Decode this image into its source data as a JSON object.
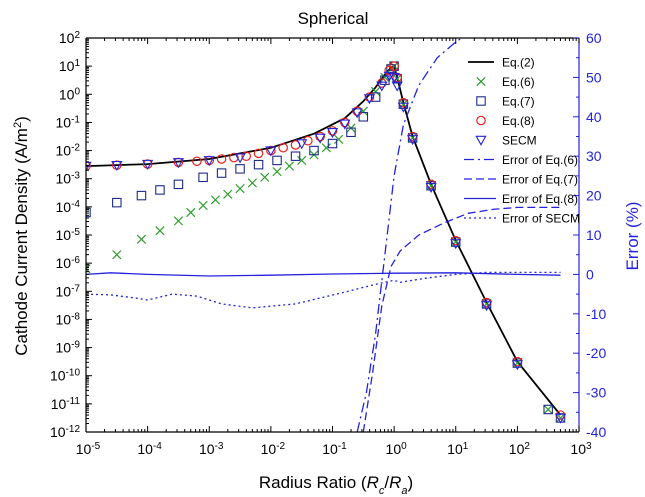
{
  "chart_data": {
    "type": "scatter",
    "title": "Spherical",
    "xlabel": "Radius Ratio (Rc/Ra)",
    "xlabel_parts": {
      "pre": "Radius Ratio (",
      "r1": "R",
      "s1": "c",
      "slash": "/",
      "r2": "R",
      "s2": "a",
      "post": ")"
    },
    "ylabel": "Cathode Current Density (A/m2)",
    "ylabel_parts": {
      "pre": "Cathode Current Density (A/m",
      "sup": "2",
      "post": ")"
    },
    "y2label": "Error (%)",
    "x_scale": "log",
    "y_scale": "log",
    "xlim_exp": [
      -5,
      3
    ],
    "ylim_exp": [
      -12,
      2
    ],
    "y2lim": [
      -40,
      60
    ],
    "x_ticks": [
      {
        "b": "10",
        "e": "-5"
      },
      {
        "b": "10",
        "e": "-4"
      },
      {
        "b": "10",
        "e": "-3"
      },
      {
        "b": "10",
        "e": "-2"
      },
      {
        "b": "10",
        "e": "-1"
      },
      {
        "b": "10",
        "e": "0"
      },
      {
        "b": "10",
        "e": "1"
      },
      {
        "b": "10",
        "e": "2"
      },
      {
        "b": "10",
        "e": "3"
      }
    ],
    "y_ticks": [
      {
        "b": "10",
        "e": "-12"
      },
      {
        "b": "10",
        "e": "-11"
      },
      {
        "b": "10",
        "e": "-10"
      },
      {
        "b": "10",
        "e": "-9"
      },
      {
        "b": "10",
        "e": "-8"
      },
      {
        "b": "10",
        "e": "-7"
      },
      {
        "b": "10",
        "e": "-6"
      },
      {
        "b": "10",
        "e": "-5"
      },
      {
        "b": "10",
        "e": "-4"
      },
      {
        "b": "10",
        "e": "-3"
      },
      {
        "b": "10",
        "e": "-2"
      },
      {
        "b": "10",
        "e": "-1"
      },
      {
        "b": "10",
        "e": "0"
      },
      {
        "b": "10",
        "e": "1"
      },
      {
        "b": "10",
        "e": "2"
      }
    ],
    "y2_ticks": [
      "-40",
      "-30",
      "-20",
      "-10",
      "0",
      "10",
      "20",
      "30",
      "40",
      "50",
      "60"
    ],
    "legend_position": "top-right",
    "colors": {
      "axis": "#000000",
      "right_axis": "#2323dc",
      "eq2": "#000000",
      "eq6": "#2e9c2e",
      "eq7": "#1f2a8c",
      "eq8": "#e8201e",
      "secm": "#2323dc",
      "error": "#2323dc"
    },
    "series": [
      {
        "name": "Eq.(2)",
        "marker": "line",
        "axis": "left",
        "points_log": [
          [
            -5,
            -2.55
          ],
          [
            -4,
            -2.48
          ],
          [
            -3,
            -2.3
          ],
          [
            -2,
            -1.9
          ],
          [
            -1.3,
            -1.4
          ],
          [
            -0.8,
            -0.85
          ],
          [
            -0.5,
            -0.25
          ],
          [
            -0.3,
            0.25
          ],
          [
            -0.15,
            0.7
          ],
          [
            -0.05,
            0.95
          ],
          [
            0,
            1.0
          ],
          [
            0.05,
            0.6
          ],
          [
            0.15,
            -0.3
          ],
          [
            0.3,
            -1.5
          ],
          [
            0.6,
            -3.2
          ],
          [
            1,
            -5.2
          ],
          [
            1.5,
            -7.4
          ],
          [
            2,
            -9.5
          ],
          [
            2.7,
            -11.4
          ]
        ]
      },
      {
        "name": "Eq.(6)",
        "marker": "x",
        "axis": "left",
        "points_log": [
          [
            -5,
            -6.2
          ],
          [
            -4.5,
            -5.7
          ],
          [
            -4.1,
            -5.15
          ],
          [
            -3.8,
            -4.85
          ],
          [
            -3.5,
            -4.5
          ],
          [
            -3.3,
            -4.2
          ],
          [
            -3.1,
            -3.95
          ],
          [
            -2.9,
            -3.75
          ],
          [
            -2.7,
            -3.55
          ],
          [
            -2.5,
            -3.35
          ],
          [
            -2.3,
            -3.15
          ],
          [
            -2.1,
            -2.95
          ],
          [
            -1.9,
            -2.75
          ],
          [
            -1.7,
            -2.55
          ],
          [
            -1.5,
            -2.35
          ],
          [
            -1.3,
            -2.15
          ],
          [
            -1.1,
            -1.9
          ],
          [
            -0.9,
            -1.6
          ],
          [
            -0.7,
            -1.2
          ],
          [
            -0.5,
            -0.6
          ],
          [
            -0.3,
            0.1
          ],
          [
            -0.15,
            0.6
          ],
          [
            -0.05,
            0.9
          ],
          [
            0,
            1.0
          ],
          [
            0.05,
            0.55
          ],
          [
            0.15,
            -0.35
          ],
          [
            0.3,
            -1.55
          ],
          [
            0.6,
            -3.25
          ],
          [
            1,
            -5.25
          ],
          [
            1.5,
            -7.45
          ],
          [
            2,
            -9.55
          ],
          [
            2.5,
            -11.2
          ],
          [
            2.7,
            -11.5
          ]
        ]
      },
      {
        "name": "Eq.(7)",
        "marker": "square",
        "axis": "left",
        "points_log": [
          [
            -5,
            -4.2
          ],
          [
            -4.5,
            -3.85
          ],
          [
            -4.1,
            -3.6
          ],
          [
            -3.8,
            -3.4
          ],
          [
            -3.5,
            -3.2
          ],
          [
            -3.1,
            -2.95
          ],
          [
            -2.8,
            -2.8
          ],
          [
            -2.5,
            -2.65
          ],
          [
            -2.2,
            -2.5
          ],
          [
            -1.9,
            -2.35
          ],
          [
            -1.6,
            -2.2
          ],
          [
            -1.3,
            -2.0
          ],
          [
            -1.0,
            -1.75
          ],
          [
            -0.7,
            -1.35
          ],
          [
            -0.5,
            -0.8
          ],
          [
            -0.3,
            -0.1
          ],
          [
            -0.15,
            0.5
          ],
          [
            -0.05,
            0.9
          ],
          [
            0,
            1.0
          ],
          [
            0.05,
            0.55
          ],
          [
            0.15,
            -0.35
          ],
          [
            0.3,
            -1.55
          ],
          [
            0.6,
            -3.25
          ],
          [
            1,
            -5.25
          ],
          [
            1.5,
            -7.45
          ],
          [
            2,
            -9.55
          ],
          [
            2.5,
            -11.2
          ],
          [
            2.7,
            -11.5
          ]
        ]
      },
      {
        "name": "Eq.(8)",
        "marker": "circle",
        "axis": "left",
        "points_log": [
          [
            -5,
            -2.55
          ],
          [
            -4.5,
            -2.52
          ],
          [
            -4,
            -2.48
          ],
          [
            -3.5,
            -2.42
          ],
          [
            -3.2,
            -2.38
          ],
          [
            -3,
            -2.35
          ],
          [
            -2.8,
            -2.3
          ],
          [
            -2.6,
            -2.25
          ],
          [
            -2.4,
            -2.2
          ],
          [
            -2.2,
            -2.1
          ],
          [
            -2,
            -2.0
          ],
          [
            -1.8,
            -1.9
          ],
          [
            -1.6,
            -1.8
          ],
          [
            -1.4,
            -1.65
          ],
          [
            -1.2,
            -1.5
          ],
          [
            -1.0,
            -1.3
          ],
          [
            -0.8,
            -1.0
          ],
          [
            -0.6,
            -0.6
          ],
          [
            -0.4,
            -0.1
          ],
          [
            -0.2,
            0.4
          ],
          [
            -0.08,
            0.85
          ],
          [
            0,
            1.0
          ],
          [
            0.05,
            0.6
          ],
          [
            0.15,
            -0.3
          ],
          [
            0.3,
            -1.5
          ],
          [
            0.6,
            -3.2
          ],
          [
            1,
            -5.2
          ],
          [
            1.5,
            -7.4
          ],
          [
            2,
            -9.5
          ],
          [
            2.7,
            -11.4
          ]
        ]
      },
      {
        "name": "SECM",
        "marker": "triangle-down",
        "axis": "left",
        "points_log": [
          [
            -5,
            -2.55
          ],
          [
            -4.5,
            -2.52
          ],
          [
            -4,
            -2.48
          ],
          [
            -3.5,
            -2.42
          ],
          [
            -3,
            -2.35
          ],
          [
            -2.5,
            -2.25
          ],
          [
            -2,
            -2.0
          ],
          [
            -1.5,
            -1.75
          ],
          [
            -1.2,
            -1.55
          ],
          [
            -1.0,
            -1.35
          ],
          [
            -0.8,
            -1.05
          ],
          [
            -0.6,
            -0.65
          ],
          [
            -0.4,
            -0.15
          ],
          [
            -0.2,
            0.3
          ],
          [
            -0.08,
            0.65
          ],
          [
            0,
            0.6
          ],
          [
            0.05,
            0.3
          ],
          [
            0.15,
            -0.45
          ],
          [
            0.3,
            -1.6
          ],
          [
            0.6,
            -3.3
          ],
          [
            1,
            -5.3
          ],
          [
            1.5,
            -7.5
          ],
          [
            2,
            -9.6
          ],
          [
            2.7,
            -11.5
          ]
        ]
      },
      {
        "name": "Error of Eq.(6)",
        "line_style": "dash-dot",
        "axis": "right",
        "points": [
          [
            -0.6,
            -40
          ],
          [
            -0.45,
            -30
          ],
          [
            -0.3,
            -15
          ],
          [
            -0.15,
            5
          ],
          [
            0,
            25
          ],
          [
            0.15,
            38
          ],
          [
            0.4,
            48
          ],
          [
            0.7,
            55
          ],
          [
            1,
            59
          ],
          [
            1.1,
            60
          ]
        ]
      },
      {
        "name": "Error of Eq.(7)",
        "line_style": "dash",
        "axis": "right",
        "points": [
          [
            -0.5,
            -40
          ],
          [
            -0.35,
            -25
          ],
          [
            -0.2,
            -8
          ],
          [
            -0.05,
            2
          ],
          [
            0.1,
            6
          ],
          [
            0.4,
            10
          ],
          [
            0.8,
            13
          ],
          [
            1.2,
            15.5
          ],
          [
            1.6,
            16.5
          ],
          [
            2,
            17
          ],
          [
            2.7,
            17
          ]
        ]
      },
      {
        "name": "Error of Eq.(8)",
        "line_style": "solid",
        "axis": "right",
        "points": [
          [
            -5,
            0
          ],
          [
            -4.6,
            0.4
          ],
          [
            -4,
            0
          ],
          [
            -3,
            -0.4
          ],
          [
            -2,
            -0.2
          ],
          [
            -1,
            0.1
          ],
          [
            0,
            0.3
          ],
          [
            1,
            0.4
          ],
          [
            2,
            0
          ],
          [
            2.7,
            -0.2
          ]
        ]
      },
      {
        "name": "Error of SECM",
        "line_style": "dot",
        "axis": "right",
        "points": [
          [
            -5,
            -5
          ],
          [
            -4.6,
            -5.2
          ],
          [
            -4.2,
            -6
          ],
          [
            -4,
            -6.5
          ],
          [
            -3.6,
            -5
          ],
          [
            -3.2,
            -5.5
          ],
          [
            -2.8,
            -7.5
          ],
          [
            -2.3,
            -8.5
          ],
          [
            -1.6,
            -7.5
          ],
          [
            -0.8,
            -4.5
          ],
          [
            -0.3,
            -2.5
          ],
          [
            0,
            -1.5
          ],
          [
            0.1,
            -2
          ],
          [
            0.5,
            -1
          ],
          [
            1,
            0
          ],
          [
            1.5,
            0.5
          ],
          [
            2,
            0.5
          ],
          [
            2.7,
            0.5
          ]
        ]
      }
    ]
  }
}
